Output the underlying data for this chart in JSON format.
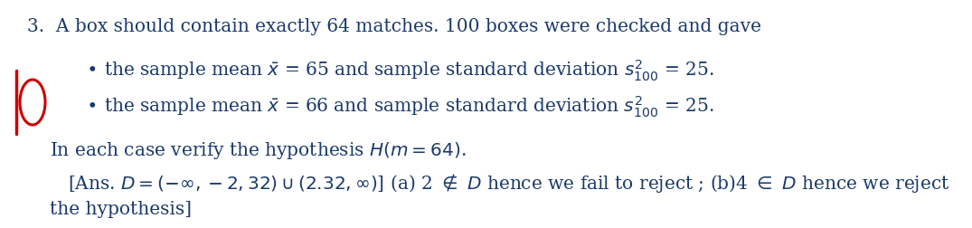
{
  "bg_color": "#ffffff",
  "text_color": "#1a3a6b",
  "red_color": "#cc0000",
  "figsize": [
    10.75,
    2.52
  ],
  "dpi": 100,
  "line1": "3.  A box should contain exactly 64 matches. 100 boxes were checked and gave",
  "bullet1_text": "the sample mean $\\bar{x}$ = 65 and sample standard deviation $s^{2}_{100}$ = 25.",
  "bullet2_text": "the sample mean $\\bar{x}$ = 66 and sample standard deviation $s^{2}_{100}$ = 25.",
  "line3_text": "In each case verify the hypothesis $H(m = 64)$.",
  "ans_text": "[Ans. $D = (-\\infty, -2, 32) \\cup (2.32, \\infty)$] (a) 2 $\\notin$ $D$ hence we fail to reject ; (b)4 $\\in$ $D$ hence we reject",
  "last_text": "the hypothesis]",
  "font_size": 14.5
}
